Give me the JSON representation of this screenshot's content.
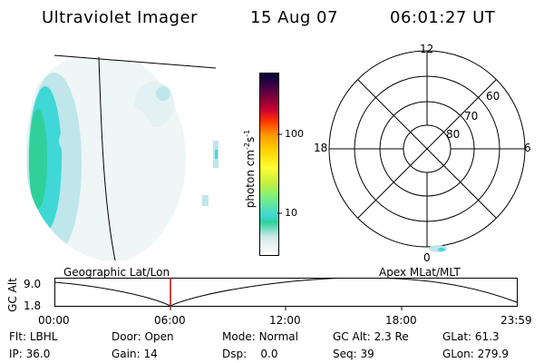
{
  "header": {
    "instrument": "Ultraviolet Imager",
    "date": "15 Aug 07",
    "time": "06:01:27 UT"
  },
  "colorbar": {
    "label": "photon cm",
    "label_sup1": "-2",
    "label_mid": "s",
    "label_sup2": "-1",
    "tick_100": "100",
    "tick_10": "10"
  },
  "polar_plot": {
    "mlt_12": "12",
    "mlt_18": "18",
    "mlt_6": "6",
    "mlt_0": "0",
    "lat_60": "60",
    "lat_70": "70",
    "lat_80": "80"
  },
  "orbit": {
    "left_title": "Geographic Lat/Lon",
    "right_title": "Apex MLat/MLT",
    "y_axis_label": "GC Alt",
    "y_top": "9.0",
    "y_bottom": "1.8",
    "x_ticks": [
      "00:00",
      "06:00",
      "12:00",
      "18:00",
      "23:59"
    ],
    "current_time_fraction": 0.251
  },
  "status": {
    "row1": [
      {
        "key": "Flt:",
        "val": "LBHL"
      },
      {
        "key": "Door:",
        "val": "Open"
      },
      {
        "key": "Mode:",
        "val": "Normal"
      },
      {
        "key": "GC Alt:",
        "val": "2.3 Re"
      },
      {
        "key": "GLat:",
        "val": "61.3"
      }
    ],
    "row2": [
      {
        "key": "IP:",
        "val": "36.0"
      },
      {
        "key": "Gain:",
        "val": "14"
      },
      {
        "key": "Dsp:",
        "val": "0.0"
      },
      {
        "key": "Seq:",
        "val": "39"
      },
      {
        "key": "GLon:",
        "val": "279.9"
      }
    ]
  },
  "colors": {
    "aurora_green": "#2ed19a",
    "aurora_cyan": "#3fd8d6",
    "aurora_light": "#bfe6ea",
    "marker_red": "#cc0000"
  }
}
